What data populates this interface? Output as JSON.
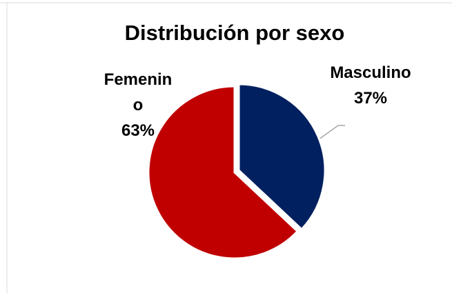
{
  "chart_data": {
    "type": "pie",
    "title": "Distribución por sexo",
    "categories": [
      "Masculino",
      "Femenino"
    ],
    "values": [
      37,
      63
    ],
    "value_labels": [
      "37%",
      "63%"
    ],
    "colors": [
      "#002060",
      "#c00000"
    ]
  }
}
